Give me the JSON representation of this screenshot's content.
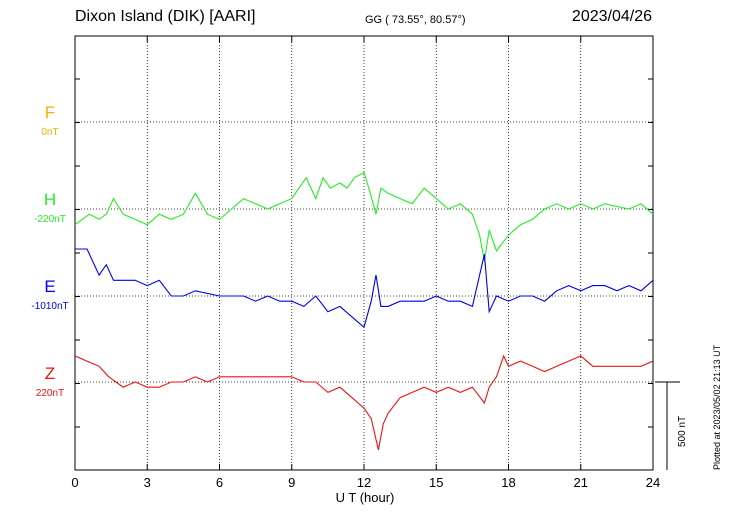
{
  "header": {
    "title": "Dixon Island (DIK)  [AARI]",
    "coords": "GG ( 73.55°,  80.57°)",
    "date": "2023/04/26"
  },
  "footer": {
    "plotted": "Plotted at 2023/05/02 21:13 UT",
    "scale": "500 nT"
  },
  "chart_data": {
    "type": "line",
    "xlabel": "U T (hour)",
    "xlim": [
      0,
      24
    ],
    "xticks": [
      "0",
      "3",
      "6",
      "9",
      "12",
      "15",
      "18",
      "21",
      "24"
    ],
    "channels": [
      {
        "name": "F",
        "baseline": "0nT",
        "color": "#f0b000",
        "points": []
      },
      {
        "name": "H",
        "baseline": "-220nT",
        "color": "#22ee22",
        "points": [
          [
            0,
            -15
          ],
          [
            0.3,
            -10
          ],
          [
            0.6,
            -5
          ],
          [
            1,
            -10
          ],
          [
            1.3,
            -5
          ],
          [
            1.6,
            10
          ],
          [
            2,
            -5
          ],
          [
            2.5,
            -10
          ],
          [
            3,
            -15
          ],
          [
            3.5,
            -5
          ],
          [
            4,
            -10
          ],
          [
            4.5,
            -5
          ],
          [
            5,
            15
          ],
          [
            5.5,
            -5
          ],
          [
            6,
            -10
          ],
          [
            6.5,
            0
          ],
          [
            7,
            10
          ],
          [
            7.5,
            5
          ],
          [
            8,
            0
          ],
          [
            8.5,
            5
          ],
          [
            9,
            10
          ],
          [
            9.3,
            20
          ],
          [
            9.6,
            30
          ],
          [
            10,
            10
          ],
          [
            10.3,
            30
          ],
          [
            10.6,
            20
          ],
          [
            11,
            25
          ],
          [
            11.3,
            20
          ],
          [
            11.6,
            30
          ],
          [
            12,
            35
          ],
          [
            12.2,
            20
          ],
          [
            12.5,
            -5
          ],
          [
            12.7,
            20
          ],
          [
            13,
            15
          ],
          [
            13.5,
            10
          ],
          [
            14,
            5
          ],
          [
            14.5,
            20
          ],
          [
            15,
            10
          ],
          [
            15.5,
            0
          ],
          [
            16,
            5
          ],
          [
            16.5,
            -5
          ],
          [
            16.8,
            -25
          ],
          [
            17,
            -50
          ],
          [
            17.2,
            -20
          ],
          [
            17.5,
            -40
          ],
          [
            18,
            -25
          ],
          [
            18.5,
            -15
          ],
          [
            19,
            -10
          ],
          [
            19.5,
            0
          ],
          [
            20,
            5
          ],
          [
            20.5,
            0
          ],
          [
            21,
            5
          ],
          [
            21.5,
            0
          ],
          [
            22,
            5
          ],
          [
            23,
            0
          ],
          [
            23.5,
            5
          ],
          [
            24,
            -5
          ]
        ]
      },
      {
        "name": "E",
        "baseline": "-1010nT",
        "color": "#0000ee",
        "points": [
          [
            0,
            45
          ],
          [
            0.5,
            45
          ],
          [
            1,
            20
          ],
          [
            1.3,
            30
          ],
          [
            1.6,
            15
          ],
          [
            2,
            15
          ],
          [
            2.5,
            15
          ],
          [
            3,
            10
          ],
          [
            3.5,
            15
          ],
          [
            4,
            0
          ],
          [
            4.5,
            0
          ],
          [
            5,
            5
          ],
          [
            6,
            0
          ],
          [
            6.5,
            0
          ],
          [
            7,
            0
          ],
          [
            7.5,
            -5
          ],
          [
            8,
            0
          ],
          [
            8.5,
            -5
          ],
          [
            9,
            -5
          ],
          [
            9.5,
            -10
          ],
          [
            10,
            0
          ],
          [
            10.5,
            -15
          ],
          [
            11,
            -10
          ],
          [
            11.5,
            -20
          ],
          [
            12,
            -30
          ],
          [
            12.3,
            -5
          ],
          [
            12.5,
            20
          ],
          [
            12.7,
            -10
          ],
          [
            13,
            -10
          ],
          [
            13.5,
            -5
          ],
          [
            14,
            -5
          ],
          [
            14.5,
            -5
          ],
          [
            15,
            0
          ],
          [
            15.5,
            -5
          ],
          [
            16,
            -5
          ],
          [
            16.5,
            -10
          ],
          [
            16.8,
            20
          ],
          [
            17,
            40
          ],
          [
            17.2,
            -15
          ],
          [
            17.5,
            0
          ],
          [
            18,
            -5
          ],
          [
            18.5,
            0
          ],
          [
            19,
            0
          ],
          [
            19.5,
            -5
          ],
          [
            20,
            5
          ],
          [
            20.5,
            10
          ],
          [
            21,
            5
          ],
          [
            21.5,
            10
          ],
          [
            22,
            10
          ],
          [
            22.5,
            5
          ],
          [
            23,
            10
          ],
          [
            23.5,
            5
          ],
          [
            24,
            15
          ]
        ]
      },
      {
        "name": "Z",
        "baseline": "220nT",
        "color": "#ee1111",
        "points": [
          [
            0,
            25
          ],
          [
            0.5,
            20
          ],
          [
            1,
            15
          ],
          [
            1.4,
            5
          ],
          [
            2,
            -5
          ],
          [
            2.5,
            0
          ],
          [
            3,
            -5
          ],
          [
            3.5,
            -5
          ],
          [
            4,
            0
          ],
          [
            4.5,
            0
          ],
          [
            5,
            5
          ],
          [
            5.5,
            0
          ],
          [
            6,
            5
          ],
          [
            6.5,
            5
          ],
          [
            7,
            5
          ],
          [
            7.5,
            5
          ],
          [
            8,
            5
          ],
          [
            8.5,
            5
          ],
          [
            9,
            5
          ],
          [
            9.5,
            0
          ],
          [
            10,
            0
          ],
          [
            10.5,
            -10
          ],
          [
            11,
            -5
          ],
          [
            11.5,
            -15
          ],
          [
            12,
            -25
          ],
          [
            12.3,
            -35
          ],
          [
            12.6,
            -65
          ],
          [
            12.8,
            -40
          ],
          [
            13,
            -30
          ],
          [
            13.5,
            -15
          ],
          [
            14,
            -10
          ],
          [
            14.5,
            -5
          ],
          [
            15,
            -10
          ],
          [
            15.5,
            -5
          ],
          [
            16,
            -10
          ],
          [
            16.5,
            -5
          ],
          [
            17,
            -20
          ],
          [
            17.2,
            -5
          ],
          [
            17.5,
            5
          ],
          [
            17.8,
            25
          ],
          [
            18,
            15
          ],
          [
            18.5,
            20
          ],
          [
            19,
            15
          ],
          [
            19.5,
            10
          ],
          [
            20,
            15
          ],
          [
            20.5,
            20
          ],
          [
            21,
            25
          ],
          [
            21.5,
            15
          ],
          [
            22,
            15
          ],
          [
            22.5,
            15
          ],
          [
            23,
            15
          ],
          [
            23.5,
            15
          ],
          [
            24,
            20
          ]
        ]
      }
    ]
  }
}
